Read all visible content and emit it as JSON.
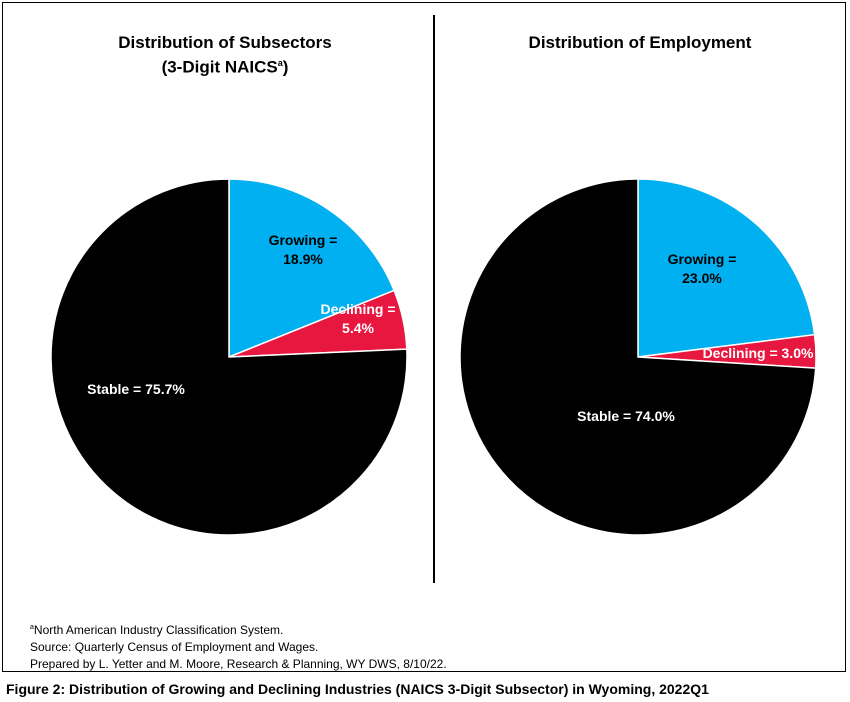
{
  "chart_data": [
    {
      "type": "pie",
      "title": "Distribution of Subsectors",
      "subtitle_text": "(3-Digit NAICS",
      "subtitle_sup": "a",
      "subtitle_end": ")",
      "slices": [
        {
          "name": "Growing",
          "value": 18.9,
          "color": "#00B0F0",
          "label_line1": "Growing =",
          "label_line2": "18.9%"
        },
        {
          "name": "Declining",
          "value": 5.4,
          "color": "#E8173F",
          "label_line1": "Declining =",
          "label_line2": "5.4%"
        },
        {
          "name": "Stable",
          "value": 75.7,
          "color": "#000000",
          "label_line1": "Stable = 75.7%",
          "label_line2": ""
        }
      ]
    },
    {
      "type": "pie",
      "title": "Distribution of Employment",
      "slices": [
        {
          "name": "Growing",
          "value": 23.0,
          "color": "#00B0F0",
          "label_line1": "Growing =",
          "label_line2": "23.0%"
        },
        {
          "name": "Declining",
          "value": 3.0,
          "color": "#E8173F",
          "label_line1": "Declining = 3.0%",
          "label_line2": ""
        },
        {
          "name": "Stable",
          "value": 74.0,
          "color": "#000000",
          "label_line1": "Stable = 74.0%",
          "label_line2": ""
        }
      ]
    }
  ],
  "notes": {
    "footnote_sup": "a",
    "footnote_text": "North American Industry Classification System.",
    "source": "Source: Quarterly Census of Employment and Wages.",
    "prepared": "Prepared by L. Yetter and M. Moore, Research & Planning, WY DWS, 8/10/22."
  },
  "caption": "Figure 2: Distribution of Growing and Declining Industries (NAICS 3-Digit Subsector) in Wyoming, 2022Q1"
}
